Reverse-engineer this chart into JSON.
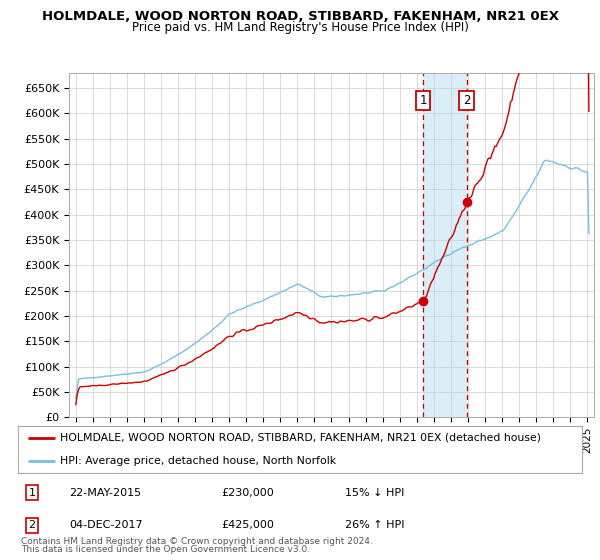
{
  "title": "HOLMDALE, WOOD NORTON ROAD, STIBBARD, FAKENHAM, NR21 0EX",
  "subtitle": "Price paid vs. HM Land Registry's House Price Index (HPI)",
  "ylim": [
    0,
    680000
  ],
  "yticks": [
    0,
    50000,
    100000,
    150000,
    200000,
    250000,
    300000,
    350000,
    400000,
    450000,
    500000,
    550000,
    600000,
    650000
  ],
  "ytick_labels": [
    "£0",
    "£50K",
    "£100K",
    "£150K",
    "£200K",
    "£250K",
    "£300K",
    "£350K",
    "£400K",
    "£450K",
    "£500K",
    "£550K",
    "£600K",
    "£650K"
  ],
  "sale1_date": 2015.38,
  "sale1_price": 230000,
  "sale1_text": "22-MAY-2015",
  "sale1_amount": "£230,000",
  "sale1_pct": "15% ↓ HPI",
  "sale2_date": 2017.92,
  "sale2_price": 425000,
  "sale2_text": "04-DEC-2017",
  "sale2_amount": "£425,000",
  "sale2_pct": "26% ↑ HPI",
  "legend_line1": "HOLMDALE, WOOD NORTON ROAD, STIBBARD, FAKENHAM, NR21 0EX (detached house)",
  "legend_line2": "HPI: Average price, detached house, North Norfolk",
  "footnote1": "Contains HM Land Registry data © Crown copyright and database right 2024.",
  "footnote2": "This data is licensed under the Open Government Licence v3.0.",
  "hpi_color": "#7bbfdd",
  "sale_color": "#cc0000",
  "background_color": "#ffffff",
  "grid_color": "#cccccc",
  "shade_color": "#daeef8"
}
